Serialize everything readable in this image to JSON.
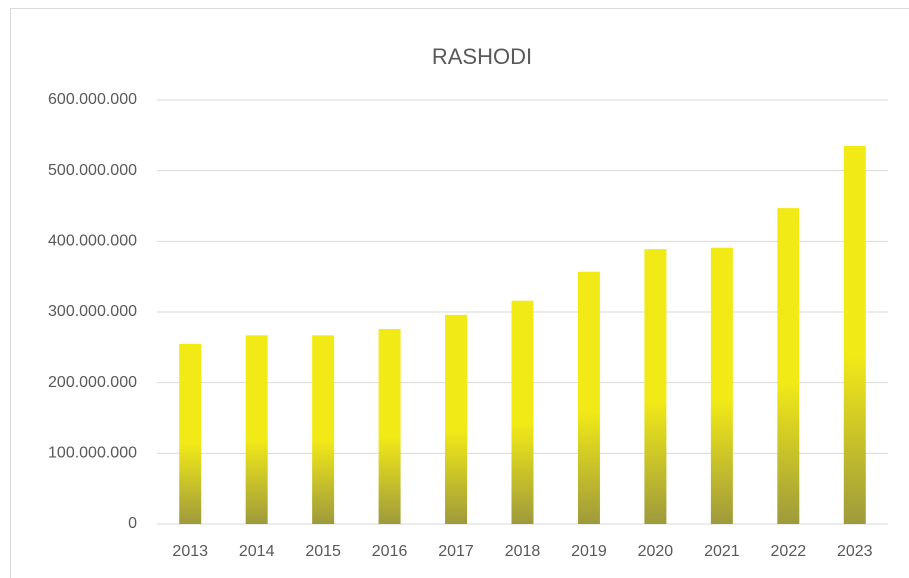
{
  "chart_data": {
    "type": "bar",
    "title": "RASHODI",
    "categories": [
      "2013",
      "2014",
      "2015",
      "2016",
      "2017",
      "2018",
      "2019",
      "2020",
      "2021",
      "2022",
      "2023"
    ],
    "values": [
      255000000,
      267000000,
      267000000,
      276000000,
      296000000,
      316000000,
      357000000,
      389000000,
      391000000,
      447000000,
      535000000
    ],
    "color": "#f2ea17",
    "gradient_bottom_color": "#9e9a3c",
    "ylim": [
      0,
      600000000
    ],
    "yticks": [
      0,
      {
        "value": 100000000,
        "label": "100.000.000"
      },
      {
        "value": 200000000,
        "label": "200.000.000"
      },
      {
        "value": 300000000,
        "label": "300.000.000"
      },
      {
        "value": 400000000,
        "label": "400.000.000"
      },
      {
        "value": 500000000,
        "label": "500.000.000"
      },
      {
        "value": 600000000,
        "label": "600.000.000"
      }
    ],
    "grid": true
  }
}
